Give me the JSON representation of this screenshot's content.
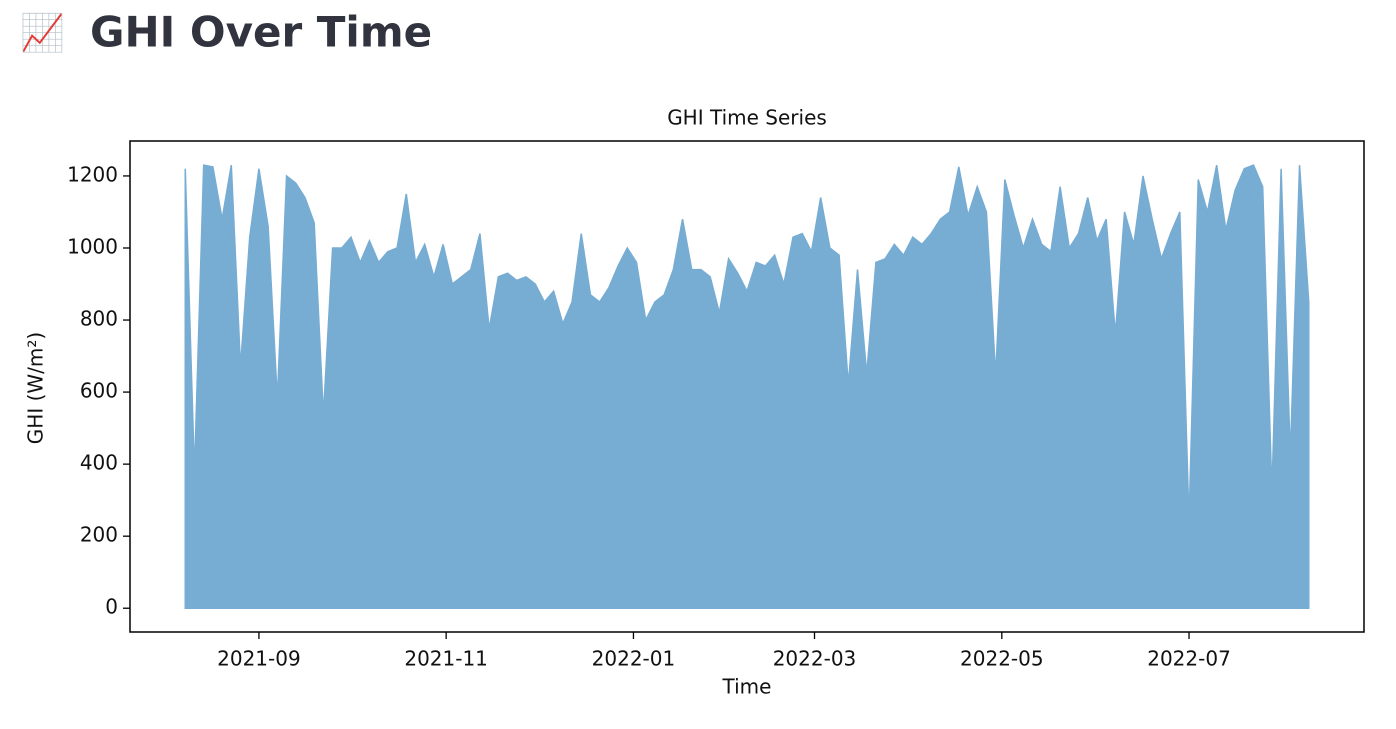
{
  "header": {
    "icon": "📈",
    "title": "GHI Over Time"
  },
  "chart_data": {
    "type": "line",
    "title": "GHI Time Series",
    "x_label": "Time",
    "y_label": "GHI (W/m²)",
    "series": [
      {
        "name": "GHI",
        "color": "#77acd3",
        "values": [
          1220,
          375,
          1230,
          1225,
          1080,
          1230,
          670,
          1030,
          1220,
          1060,
          580,
          1200,
          1180,
          1140,
          1070,
          535,
          1000,
          1000,
          1030,
          960,
          1020,
          960,
          990,
          1000,
          1150,
          960,
          1010,
          920,
          1010,
          900,
          920,
          940,
          1040,
          775,
          920,
          930,
          910,
          920,
          900,
          850,
          880,
          790,
          850,
          1040,
          870,
          850,
          890,
          950,
          1000,
          960,
          800,
          850,
          870,
          940,
          1080,
          940,
          940,
          920,
          820,
          970,
          930,
          880,
          960,
          950,
          980,
          900,
          1030,
          1040,
          990,
          1140,
          1000,
          980,
          620,
          940,
          650,
          960,
          970,
          1010,
          980,
          1030,
          1010,
          1040,
          1080,
          1100,
          1225,
          1090,
          1170,
          1100,
          645,
          1190,
          1090,
          1000,
          1080,
          1010,
          990,
          1170,
          1000,
          1040,
          1140,
          1020,
          1080,
          760,
          1100,
          1010,
          1200,
          1080,
          970,
          1040,
          1100,
          240,
          1190,
          1100,
          1230,
          1050,
          1160,
          1220,
          1230,
          1170,
          320,
          1220,
          420,
          1230,
          850
        ]
      }
    ],
    "xlim": [
      -6,
      128
    ],
    "xticks": [
      {
        "value": 8,
        "label": "2021-09"
      },
      {
        "value": 28.33,
        "label": "2021-11"
      },
      {
        "value": 48.67,
        "label": "2022-01"
      },
      {
        "value": 68.33,
        "label": "2022-03"
      },
      {
        "value": 88.67,
        "label": "2022-05"
      },
      {
        "value": 109,
        "label": "2022-07"
      }
    ],
    "ylim": [
      -66,
      1297
    ],
    "yticks": [
      0,
      200,
      400,
      600,
      800,
      1000,
      1200
    ],
    "grid": false
  }
}
